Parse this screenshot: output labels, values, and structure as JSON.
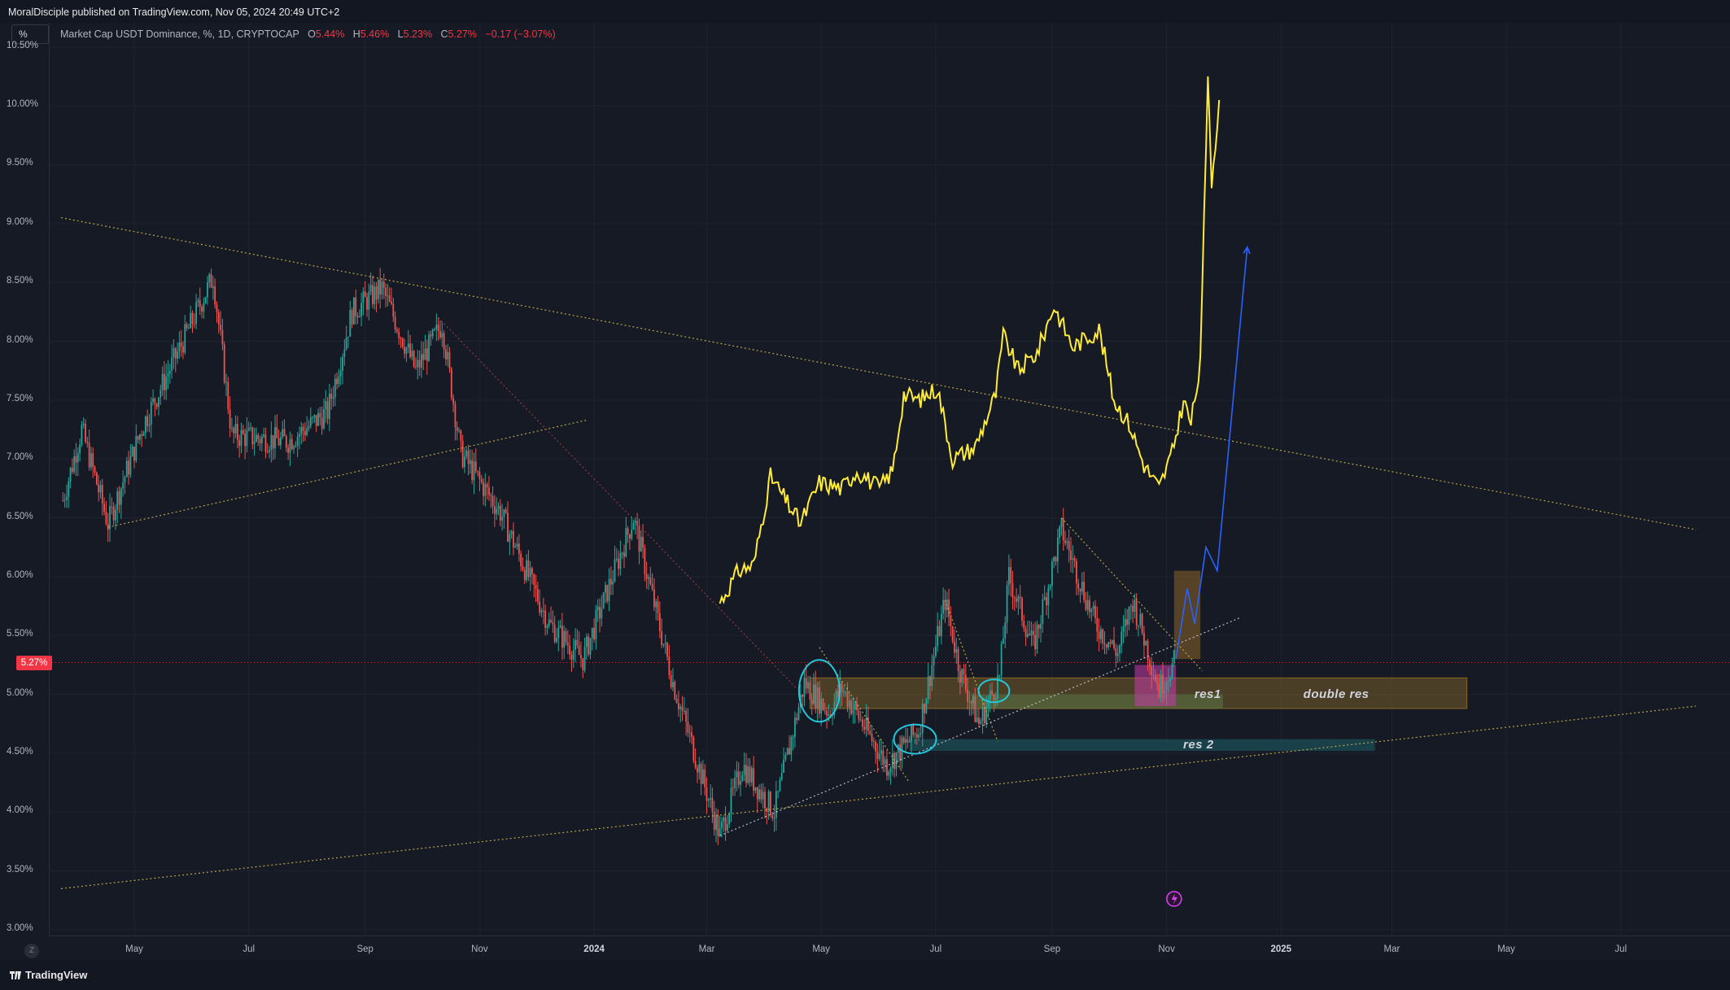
{
  "header": {
    "publisher": "MoralDisciple published on TradingView.com, Nov 05, 2024 20:49 UTC+2",
    "scale_button": "%",
    "symbol": "Market Cap USDT Dominance, %, 1D, CRYPTOCAP",
    "ohlc": {
      "o_label": "O",
      "o_value": "5.44%",
      "h_label": "H",
      "h_value": "5.46%",
      "l_label": "L",
      "l_value": "5.23%",
      "c_label": "C",
      "c_value": "5.27%",
      "change": "−0.17 (−3.07%)"
    }
  },
  "footer": {
    "brand": "TradingView",
    "z_label": "Z"
  },
  "colors": {
    "background": "#161a25",
    "candle_up": "#26a69a",
    "candle_down": "#ef5350",
    "yellow_line": "#ffeb3b",
    "projection": "#2962ff",
    "price_tag": "#f23645",
    "resistance_orange": "#a3782a",
    "resistance_teal": "#1e6e78"
  },
  "chart_data": {
    "type": "candlestick",
    "title": "Market Cap USDT Dominance, %, 1D, CRYPTOCAP",
    "ylabel": "",
    "ylim": [
      3.0,
      10.5
    ],
    "y_ticks": [
      "10.50%",
      "10.00%",
      "9.50%",
      "9.00%",
      "8.50%",
      "8.00%",
      "7.50%",
      "7.00%",
      "6.50%",
      "6.00%",
      "5.50%",
      "5.00%",
      "4.50%",
      "4.00%",
      "3.50%",
      "3.00%"
    ],
    "x_ticks": [
      {
        "label": "May",
        "date": "2023-05-01",
        "bold": false
      },
      {
        "label": "Jul",
        "date": "2023-07-01",
        "bold": false
      },
      {
        "label": "Sep",
        "date": "2023-09-01",
        "bold": false
      },
      {
        "label": "Nov",
        "date": "2023-11-01",
        "bold": false
      },
      {
        "label": "2024",
        "date": "2024-01-01",
        "bold": true
      },
      {
        "label": "Mar",
        "date": "2024-03-01",
        "bold": false
      },
      {
        "label": "May",
        "date": "2024-05-01",
        "bold": false
      },
      {
        "label": "Jul",
        "date": "2024-07-01",
        "bold": false
      },
      {
        "label": "Sep",
        "date": "2024-09-01",
        "bold": false
      },
      {
        "label": "Nov",
        "date": "2024-11-01",
        "bold": false
      },
      {
        "label": "2025",
        "date": "2025-01-01",
        "bold": true
      },
      {
        "label": "Mar",
        "date": "2025-03-01",
        "bold": false
      },
      {
        "label": "May",
        "date": "2025-05-01",
        "bold": false
      },
      {
        "label": "Jul",
        "date": "2025-07-01",
        "bold": false
      }
    ],
    "last_price": "5.27%",
    "last_price_value": 5.27,
    "price_anchors": [
      {
        "date": "2023-03-24",
        "value": 6.65
      },
      {
        "date": "2023-04-03",
        "value": 7.25
      },
      {
        "date": "2023-04-17",
        "value": 6.45
      },
      {
        "date": "2023-05-06",
        "value": 7.3
      },
      {
        "date": "2023-05-24",
        "value": 7.9
      },
      {
        "date": "2023-06-12",
        "value": 8.55
      },
      {
        "date": "2023-06-22",
        "value": 7.2
      },
      {
        "date": "2023-07-22",
        "value": 7.15
      },
      {
        "date": "2023-08-12",
        "value": 7.4
      },
      {
        "date": "2023-08-25",
        "value": 8.25
      },
      {
        "date": "2023-09-10",
        "value": 8.45
      },
      {
        "date": "2023-09-28",
        "value": 7.75
      },
      {
        "date": "2023-10-12",
        "value": 8.15
      },
      {
        "date": "2023-10-22",
        "value": 7.05
      },
      {
        "date": "2023-11-12",
        "value": 6.55
      },
      {
        "date": "2023-12-08",
        "value": 5.6
      },
      {
        "date": "2023-12-26",
        "value": 5.3
      },
      {
        "date": "2024-01-22",
        "value": 6.5
      },
      {
        "date": "2024-02-12",
        "value": 5.1
      },
      {
        "date": "2024-03-08",
        "value": 3.8
      },
      {
        "date": "2024-03-20",
        "value": 4.4
      },
      {
        "date": "2024-04-06",
        "value": 4.0
      },
      {
        "date": "2024-04-22",
        "value": 5.1
      },
      {
        "date": "2024-05-05",
        "value": 4.85
      },
      {
        "date": "2024-05-12",
        "value": 5.05
      },
      {
        "date": "2024-06-05",
        "value": 4.4
      },
      {
        "date": "2024-06-22",
        "value": 4.7
      },
      {
        "date": "2024-07-06",
        "value": 5.8
      },
      {
        "date": "2024-07-14",
        "value": 5.2
      },
      {
        "date": "2024-07-24",
        "value": 4.75
      },
      {
        "date": "2024-08-04",
        "value": 5.15
      },
      {
        "date": "2024-08-09",
        "value": 6.0
      },
      {
        "date": "2024-08-22",
        "value": 5.4
      },
      {
        "date": "2024-09-06",
        "value": 6.4
      },
      {
        "date": "2024-09-24",
        "value": 5.6
      },
      {
        "date": "2024-10-06",
        "value": 5.35
      },
      {
        "date": "2024-10-14",
        "value": 5.8
      },
      {
        "date": "2024-10-28",
        "value": 5.05
      },
      {
        "date": "2024-11-05",
        "value": 5.27
      }
    ],
    "yellow_line": [
      {
        "date": "2024-03-08",
        "value": 5.78
      },
      {
        "date": "2024-03-18",
        "value": 6.05
      },
      {
        "date": "2024-03-26",
        "value": 6.1
      },
      {
        "date": "2024-04-04",
        "value": 6.85
      },
      {
        "date": "2024-04-10",
        "value": 6.7
      },
      {
        "date": "2024-04-20",
        "value": 6.45
      },
      {
        "date": "2024-04-30",
        "value": 6.8
      },
      {
        "date": "2024-05-12",
        "value": 6.75
      },
      {
        "date": "2024-05-20",
        "value": 6.9
      },
      {
        "date": "2024-06-01",
        "value": 6.75
      },
      {
        "date": "2024-06-08",
        "value": 6.9
      },
      {
        "date": "2024-06-14",
        "value": 7.55
      },
      {
        "date": "2024-06-22",
        "value": 7.5
      },
      {
        "date": "2024-07-02",
        "value": 7.6
      },
      {
        "date": "2024-07-10",
        "value": 7.0
      },
      {
        "date": "2024-07-22",
        "value": 7.1
      },
      {
        "date": "2024-08-02",
        "value": 7.55
      },
      {
        "date": "2024-08-06",
        "value": 8.05
      },
      {
        "date": "2024-08-14",
        "value": 7.75
      },
      {
        "date": "2024-08-24",
        "value": 7.9
      },
      {
        "date": "2024-09-02",
        "value": 8.3
      },
      {
        "date": "2024-09-12",
        "value": 7.95
      },
      {
        "date": "2024-09-26",
        "value": 8.1
      },
      {
        "date": "2024-10-04",
        "value": 7.5
      },
      {
        "date": "2024-10-12",
        "value": 7.3
      },
      {
        "date": "2024-10-20",
        "value": 6.95
      },
      {
        "date": "2024-10-28",
        "value": 6.75
      },
      {
        "date": "2024-11-04",
        "value": 7.05
      },
      {
        "date": "2024-11-10",
        "value": 7.5
      },
      {
        "date": "2024-11-14",
        "value": 7.3
      },
      {
        "date": "2024-11-19",
        "value": 7.8
      },
      {
        "date": "2024-11-23",
        "value": 10.25
      },
      {
        "date": "2024-11-25",
        "value": 9.35
      },
      {
        "date": "2024-11-29",
        "value": 10.05
      }
    ],
    "projection_path": [
      {
        "date": "2024-11-06",
        "value": 5.3
      },
      {
        "date": "2024-11-12",
        "value": 5.9
      },
      {
        "date": "2024-11-16",
        "value": 5.6
      },
      {
        "date": "2024-11-22",
        "value": 6.25
      },
      {
        "date": "2024-11-28",
        "value": 6.05
      },
      {
        "date": "2024-12-14",
        "value": 8.8
      }
    ],
    "trendlines": [
      {
        "name": "upper-descending",
        "color": "yellow",
        "from": {
          "date": "2023-03-23",
          "value": 9.05
        },
        "to": {
          "date": "2025-08-10",
          "value": 6.4
        }
      },
      {
        "name": "lower-ascending",
        "color": "yellow",
        "from": {
          "date": "2023-03-23",
          "value": 3.35
        },
        "to": {
          "date": "2025-08-10",
          "value": 4.9
        }
      },
      {
        "name": "early-support",
        "color": "yellow",
        "from": {
          "date": "2023-04-17",
          "value": 6.42
        },
        "to": {
          "date": "2023-12-28",
          "value": 7.33
        }
      },
      {
        "name": "red-descending",
        "color": "red",
        "from": {
          "date": "2023-10-10",
          "value": 8.2
        },
        "to": {
          "date": "2024-04-18",
          "value": 5.05
        }
      },
      {
        "name": "white-ascending",
        "color": "white",
        "from": {
          "date": "2024-03-08",
          "value": 3.8
        },
        "to": {
          "date": "2024-12-10",
          "value": 5.65
        }
      },
      {
        "name": "fall-1",
        "color": "yellow",
        "from": {
          "date": "2024-04-30",
          "value": 5.4
        },
        "to": {
          "date": "2024-06-17",
          "value": 4.25
        }
      },
      {
        "name": "fall-2",
        "color": "yellow",
        "from": {
          "date": "2024-07-06",
          "value": 5.8
        },
        "to": {
          "date": "2024-08-03",
          "value": 4.6
        }
      },
      {
        "name": "fall-3",
        "color": "yellow",
        "from": {
          "date": "2024-09-06",
          "value": 6.5
        },
        "to": {
          "date": "2024-11-20",
          "value": 5.2
        }
      }
    ],
    "zones": [
      {
        "name": "res1 / double res",
        "from": "2024-04-25",
        "to": "2025-04-10",
        "low": 4.88,
        "high": 5.14,
        "color": "orange"
      },
      {
        "name": "res1-inner",
        "from": "2024-07-20",
        "to": "2024-12-01",
        "low": 4.88,
        "high": 5.0,
        "color": "green"
      },
      {
        "name": "res 2",
        "from": "2024-06-17",
        "to": "2025-02-20",
        "low": 4.52,
        "high": 4.62,
        "color": "teal"
      },
      {
        "name": "entry-box",
        "from": "2024-11-05",
        "to": "2024-11-19",
        "low": 5.3,
        "high": 6.05,
        "color": "brown"
      },
      {
        "name": "pink-box",
        "from": "2024-10-15",
        "to": "2024-11-06",
        "low": 4.9,
        "high": 5.25,
        "color": "pink"
      }
    ],
    "annotations": [
      {
        "text": "res1",
        "date": "2024-11-28",
        "value": 5.0
      },
      {
        "text": "double res",
        "date": "2025-01-25",
        "value": 5.0
      },
      {
        "text": "res 2",
        "date": "2024-11-22",
        "value": 4.57
      }
    ],
    "circles": [
      {
        "date": "2024-04-30",
        "value": 5.03
      },
      {
        "date": "2024-06-20",
        "value": 4.62
      },
      {
        "date": "2024-08-01",
        "value": 5.03
      }
    ]
  }
}
